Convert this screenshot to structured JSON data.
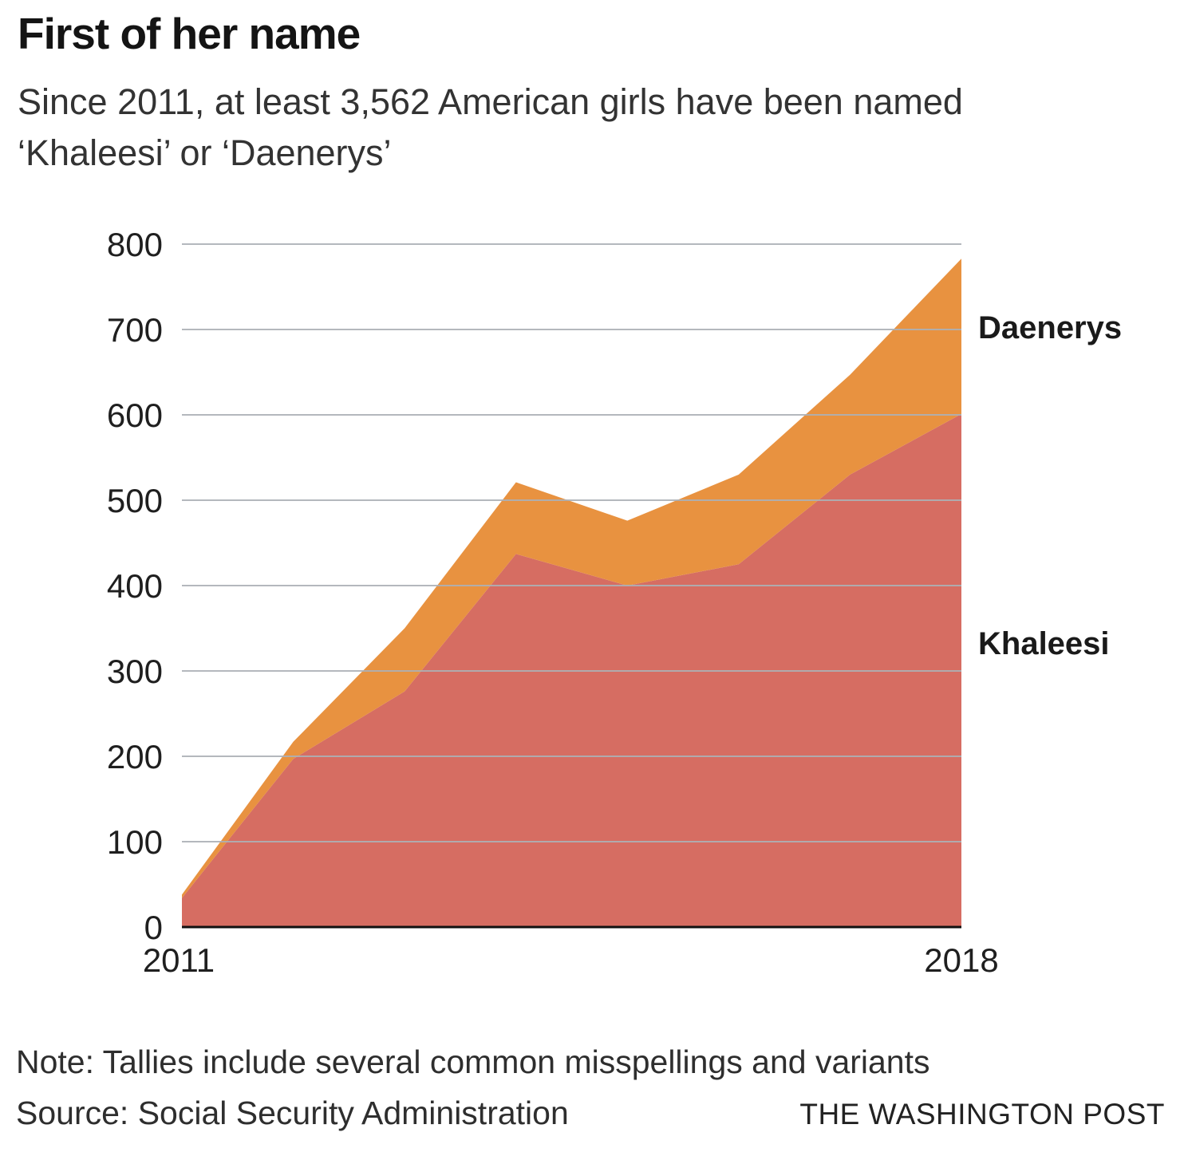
{
  "header": {
    "title": "First of her name",
    "subtitle": "Since 2011, at least 3,562 American girls have been named ‘Khaleesi’ or ‘Daenerys’"
  },
  "chart_data": {
    "type": "area",
    "stacked": true,
    "x": [
      2011,
      2012,
      2013,
      2014,
      2015,
      2016,
      2017,
      2018
    ],
    "series": [
      {
        "name": "Khaleesi",
        "color": "#d66d62",
        "values": [
          34,
          197,
          276,
          437,
          400,
          425,
          530,
          601
        ]
      },
      {
        "name": "Daenerys",
        "color": "#e89240",
        "values": [
          4,
          20,
          74,
          84,
          76,
          105,
          117,
          182
        ]
      }
    ],
    "stacked_totals": [
      38,
      217,
      350,
      521,
      476,
      530,
      647,
      783
    ],
    "ylim": [
      0,
      800
    ],
    "yticks": [
      0,
      100,
      200,
      300,
      400,
      500,
      600,
      700,
      800
    ],
    "x_axis_labels": [
      "2011",
      "2018"
    ],
    "grid": "horizontal",
    "gridline_color": "#acb0b6",
    "baseline_color": "#111111",
    "tick_label_color": "#1f1f1f",
    "legend_position": "right-of-plot"
  },
  "labels": {
    "daenerys": "Daenerys",
    "khaleesi": "Khaleesi"
  },
  "footer": {
    "note": "Note: Tallies include several common misspellings and variants",
    "source": "Source: Social Security Administration",
    "credit": "THE WASHINGTON POST"
  }
}
